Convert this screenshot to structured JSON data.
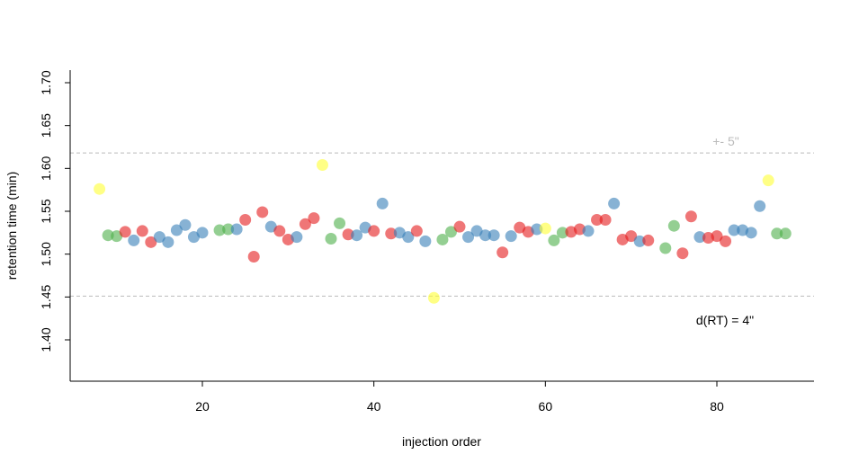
{
  "chart_data": {
    "type": "scatter",
    "title": "",
    "xlabel": "injection order",
    "ylabel": "retention time (min)",
    "xlim": [
      4,
      90
    ],
    "ylim": [
      1.35,
      1.72
    ],
    "x_ticks": [
      20,
      40,
      60,
      80
    ],
    "y_ticks": [
      1.4,
      1.45,
      1.5,
      1.55,
      1.6,
      1.65,
      1.7
    ],
    "y_tick_labels": [
      "1.40",
      "1.45",
      "1.50",
      "1.55",
      "1.60",
      "1.65",
      "1.70"
    ],
    "grid": false,
    "reference_lines": [
      {
        "y": 1.618,
        "label": "+- 5\"",
        "color": "#bbbbbb"
      },
      {
        "y": 1.451,
        "label": "",
        "color": "#bbbbbb"
      }
    ],
    "annotation": "d(RT) = 4\"",
    "colors": {
      "red": "#e41a1c",
      "blue": "#377eb8",
      "green": "#4daf4a",
      "yellow": "#ffff33"
    },
    "points": [
      {
        "x": 8,
        "y": 1.576,
        "c": "yellow"
      },
      {
        "x": 9,
        "y": 1.522,
        "c": "green"
      },
      {
        "x": 10,
        "y": 1.521,
        "c": "green"
      },
      {
        "x": 11,
        "y": 1.526,
        "c": "red"
      },
      {
        "x": 12,
        "y": 1.516,
        "c": "blue"
      },
      {
        "x": 13,
        "y": 1.527,
        "c": "red"
      },
      {
        "x": 14,
        "y": 1.514,
        "c": "red"
      },
      {
        "x": 15,
        "y": 1.52,
        "c": "blue"
      },
      {
        "x": 16,
        "y": 1.514,
        "c": "blue"
      },
      {
        "x": 17,
        "y": 1.528,
        "c": "blue"
      },
      {
        "x": 18,
        "y": 1.534,
        "c": "blue"
      },
      {
        "x": 19,
        "y": 1.52,
        "c": "blue"
      },
      {
        "x": 20,
        "y": 1.525,
        "c": "blue"
      },
      {
        "x": 22,
        "y": 1.528,
        "c": "green"
      },
      {
        "x": 23,
        "y": 1.529,
        "c": "green"
      },
      {
        "x": 24,
        "y": 1.529,
        "c": "blue"
      },
      {
        "x": 25,
        "y": 1.54,
        "c": "red"
      },
      {
        "x": 26,
        "y": 1.497,
        "c": "red"
      },
      {
        "x": 27,
        "y": 1.549,
        "c": "red"
      },
      {
        "x": 28,
        "y": 1.532,
        "c": "blue"
      },
      {
        "x": 29,
        "y": 1.527,
        "c": "red"
      },
      {
        "x": 30,
        "y": 1.517,
        "c": "red"
      },
      {
        "x": 31,
        "y": 1.52,
        "c": "blue"
      },
      {
        "x": 32,
        "y": 1.535,
        "c": "red"
      },
      {
        "x": 33,
        "y": 1.542,
        "c": "red"
      },
      {
        "x": 34,
        "y": 1.604,
        "c": "yellow"
      },
      {
        "x": 35,
        "y": 1.518,
        "c": "green"
      },
      {
        "x": 36,
        "y": 1.536,
        "c": "green"
      },
      {
        "x": 37,
        "y": 1.523,
        "c": "red"
      },
      {
        "x": 38,
        "y": 1.522,
        "c": "blue"
      },
      {
        "x": 39,
        "y": 1.531,
        "c": "blue"
      },
      {
        "x": 40,
        "y": 1.527,
        "c": "red"
      },
      {
        "x": 41,
        "y": 1.559,
        "c": "blue"
      },
      {
        "x": 42,
        "y": 1.524,
        "c": "red"
      },
      {
        "x": 43,
        "y": 1.525,
        "c": "blue"
      },
      {
        "x": 44,
        "y": 1.52,
        "c": "blue"
      },
      {
        "x": 45,
        "y": 1.527,
        "c": "red"
      },
      {
        "x": 46,
        "y": 1.515,
        "c": "blue"
      },
      {
        "x": 47,
        "y": 1.449,
        "c": "yellow"
      },
      {
        "x": 48,
        "y": 1.517,
        "c": "green"
      },
      {
        "x": 49,
        "y": 1.526,
        "c": "green"
      },
      {
        "x": 50,
        "y": 1.532,
        "c": "red"
      },
      {
        "x": 51,
        "y": 1.52,
        "c": "blue"
      },
      {
        "x": 52,
        "y": 1.527,
        "c": "blue"
      },
      {
        "x": 53,
        "y": 1.522,
        "c": "blue"
      },
      {
        "x": 54,
        "y": 1.522,
        "c": "blue"
      },
      {
        "x": 55,
        "y": 1.502,
        "c": "red"
      },
      {
        "x": 56,
        "y": 1.521,
        "c": "blue"
      },
      {
        "x": 57,
        "y": 1.531,
        "c": "red"
      },
      {
        "x": 58,
        "y": 1.526,
        "c": "red"
      },
      {
        "x": 59,
        "y": 1.529,
        "c": "blue"
      },
      {
        "x": 60,
        "y": 1.53,
        "c": "yellow"
      },
      {
        "x": 61,
        "y": 1.516,
        "c": "green"
      },
      {
        "x": 62,
        "y": 1.525,
        "c": "green"
      },
      {
        "x": 63,
        "y": 1.526,
        "c": "red"
      },
      {
        "x": 64,
        "y": 1.529,
        "c": "red"
      },
      {
        "x": 65,
        "y": 1.527,
        "c": "blue"
      },
      {
        "x": 66,
        "y": 1.54,
        "c": "red"
      },
      {
        "x": 67,
        "y": 1.54,
        "c": "red"
      },
      {
        "x": 68,
        "y": 1.559,
        "c": "blue"
      },
      {
        "x": 69,
        "y": 1.517,
        "c": "red"
      },
      {
        "x": 70,
        "y": 1.521,
        "c": "red"
      },
      {
        "x": 71,
        "y": 1.515,
        "c": "blue"
      },
      {
        "x": 72,
        "y": 1.516,
        "c": "red"
      },
      {
        "x": 74,
        "y": 1.507,
        "c": "green"
      },
      {
        "x": 75,
        "y": 1.533,
        "c": "green"
      },
      {
        "x": 76,
        "y": 1.501,
        "c": "red"
      },
      {
        "x": 77,
        "y": 1.544,
        "c": "red"
      },
      {
        "x": 78,
        "y": 1.52,
        "c": "blue"
      },
      {
        "x": 79,
        "y": 1.519,
        "c": "red"
      },
      {
        "x": 80,
        "y": 1.521,
        "c": "red"
      },
      {
        "x": 81,
        "y": 1.515,
        "c": "red"
      },
      {
        "x": 82,
        "y": 1.528,
        "c": "blue"
      },
      {
        "x": 83,
        "y": 1.528,
        "c": "blue"
      },
      {
        "x": 84,
        "y": 1.525,
        "c": "blue"
      },
      {
        "x": 85,
        "y": 1.556,
        "c": "blue"
      },
      {
        "x": 86,
        "y": 1.586,
        "c": "yellow"
      },
      {
        "x": 87,
        "y": 1.524,
        "c": "green"
      },
      {
        "x": 88,
        "y": 1.524,
        "c": "green"
      }
    ]
  }
}
